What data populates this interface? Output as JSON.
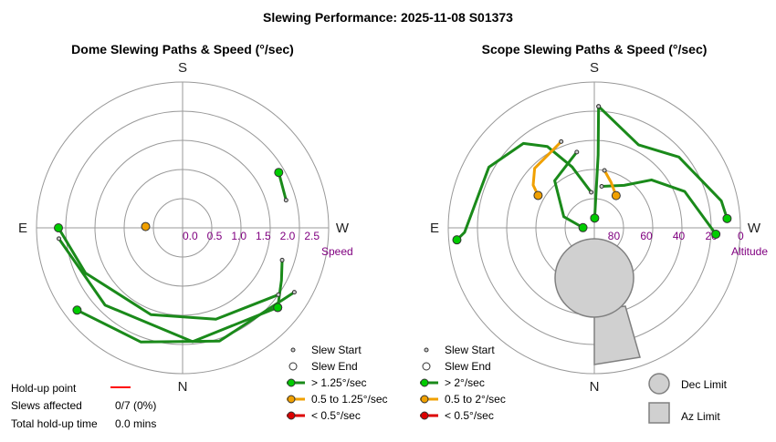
{
  "title": "Slewing Performance: 2025-11-08 S01373",
  "colors": {
    "fast": "#00cc00",
    "fast_line": "#1a8a1a",
    "medium": "#f0a000",
    "slow": "#dd0000",
    "ring": "#999999",
    "axis": "#999999",
    "limit_fill": "#d0d0d0",
    "limit_stroke": "#808080",
    "tick": "#800080"
  },
  "hold_up": {
    "point_label": "Hold-up point",
    "slews_affected_label": "Slews affected",
    "slews_affected_value": "0/7 (0%)",
    "total_time_label": "Total hold-up time",
    "total_time_value": "0.0 mins"
  },
  "chart_data": [
    {
      "type": "polar",
      "title": "Dome Slewing Paths & Speed (°/sec)",
      "compass": {
        "top": "S",
        "bottom": "N",
        "left": "E",
        "right": "W"
      },
      "radial_axis": {
        "name": "Speed",
        "ticks": [
          "2.5",
          "2.0",
          "1.5",
          "1.0",
          "0.5",
          "0.0"
        ],
        "range": [
          0,
          3.0
        ]
      },
      "legend": [
        "Slew Start",
        "Slew End",
        "> 1.25°/sec",
        "0.5 to 1.25°/sec",
        "< 0.5°/sec"
      ],
      "slews": [
        {
          "category": "fast",
          "points": [
            [
              2.15,
              108
            ],
            [
              2.3,
              118
            ],
            [
              2.55,
              130
            ]
          ]
        },
        {
          "category": "fast",
          "points": [
            [
              2.2,
              75
            ],
            [
              2.28,
              60
            ]
          ]
        },
        {
          "category": "fast",
          "points": [
            [
              2.4,
              125
            ],
            [
              2.0,
              160
            ],
            [
              1.9,
              200
            ],
            [
              2.2,
              245
            ],
            [
              2.55,
              270
            ]
          ]
        },
        {
          "category": "fast",
          "points": [
            [
              2.65,
              120
            ],
            [
              2.45,
              162
            ],
            [
              2.5,
              200
            ],
            [
              2.75,
              232
            ]
          ]
        },
        {
          "category": "fast",
          "points": [
            [
              2.55,
              265
            ],
            [
              2.25,
              225
            ],
            [
              2.35,
              175
            ],
            [
              2.55,
              130
            ]
          ]
        },
        {
          "category": "medium",
          "points": [
            [
              0.78,
              270
            ],
            [
              0.76,
              272
            ]
          ]
        }
      ]
    },
    {
      "type": "polar",
      "title": "Scope Slewing Paths & Speed (°/sec)",
      "compass": {
        "top": "S",
        "bottom": "N",
        "left": "E",
        "right": "W"
      },
      "radial_axis": {
        "name": "Altitude",
        "ticks": [
          "80",
          "60",
          "40",
          "20",
          "0"
        ],
        "range": [
          90,
          0
        ]
      },
      "legend": [
        "Slew Start",
        "Slew End",
        "> 2°/sec",
        "0.5 to 2°/sec",
        "< 0.5°/sec"
      ],
      "limits": [
        "Dec Limit",
        "Az Limit"
      ],
      "slews": [
        {
          "category": "fast",
          "points": [
            [
              68,
              355
            ],
            [
              50,
              340
            ],
            [
              32,
              330
            ],
            [
              22,
              320
            ],
            [
              15,
              300
            ],
            [
              10,
              268
            ],
            [
              5,
              265
            ]
          ]
        },
        {
          "category": "fast",
          "points": [
            [
              15,
              2
            ],
            [
              45,
              3
            ],
            [
              84,
              2
            ]
          ]
        },
        {
          "category": "fast",
          "points": [
            [
              15,
              2
            ],
            [
              32,
              28
            ],
            [
              22,
              50
            ],
            [
              10,
              78
            ],
            [
              8,
              86
            ]
          ]
        },
        {
          "category": "fast",
          "points": [
            [
              64,
              10
            ],
            [
              58,
              35
            ],
            [
              44,
              50
            ],
            [
              30,
              68
            ],
            [
              15,
              93
            ]
          ]
        },
        {
          "category": "fast",
          "points": [
            [
              42,
              347
            ],
            [
              52,
              320
            ],
            [
              70,
              290
            ],
            [
              83,
              271
            ]
          ]
        },
        {
          "category": "medium",
          "points": [
            [
              33,
              339
            ],
            [
              38,
              315
            ],
            [
              44,
              305
            ],
            [
              50,
              300
            ]
          ]
        },
        {
          "category": "medium",
          "points": [
            [
              54,
              10
            ],
            [
              60,
              20
            ],
            [
              66,
              34
            ]
          ]
        }
      ]
    }
  ]
}
